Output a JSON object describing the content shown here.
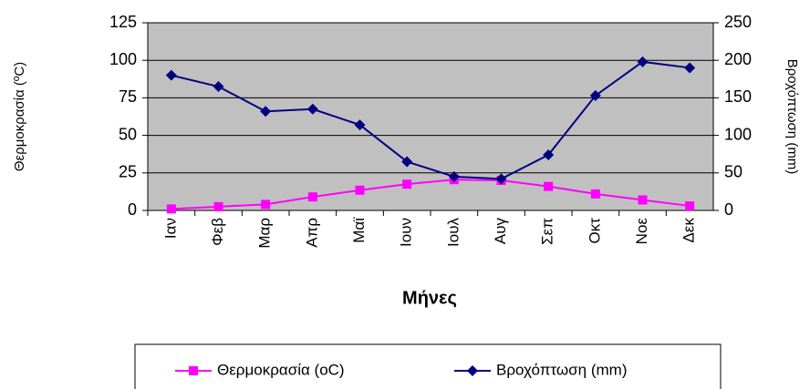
{
  "chart_data": {
    "type": "line",
    "x_label": "Μήνες",
    "y_label": "Θερμοκρασία (ºC)",
    "y2_label": "Βροχόπτωση (mm)",
    "categories": [
      "Ιαν",
      "Φεβ",
      "Μαρ",
      "Απρ",
      "Μαϊ",
      "Ιουν",
      "Ιουλ",
      "Αυγ",
      "Σεπ",
      "Οκτ",
      "Νοε",
      "Δεκ"
    ],
    "series": [
      {
        "name": "Θερμοκρασία (oC)",
        "color": "#ff00ff",
        "marker": "square",
        "values": [
          1,
          2.5,
          4,
          9,
          13.5,
          17.5,
          20.5,
          20,
          16,
          11,
          7,
          3
        ]
      },
      {
        "name": "Βροχόπτωση (mm)",
        "color": "#000080",
        "marker": "diamond",
        "axis": "y2",
        "values": [
          180,
          165,
          132,
          135,
          114,
          65,
          45,
          42,
          74,
          153,
          198,
          190
        ]
      }
    ],
    "ylim": [
      0,
      125
    ],
    "yticks": [
      0,
      25,
      50,
      75,
      100,
      125
    ],
    "y2lim": [
      0,
      250
    ],
    "y2ticks": [
      0,
      50,
      100,
      150,
      200,
      250
    ],
    "grid": true,
    "legend": "bottom",
    "background": "#c0c0c0"
  }
}
